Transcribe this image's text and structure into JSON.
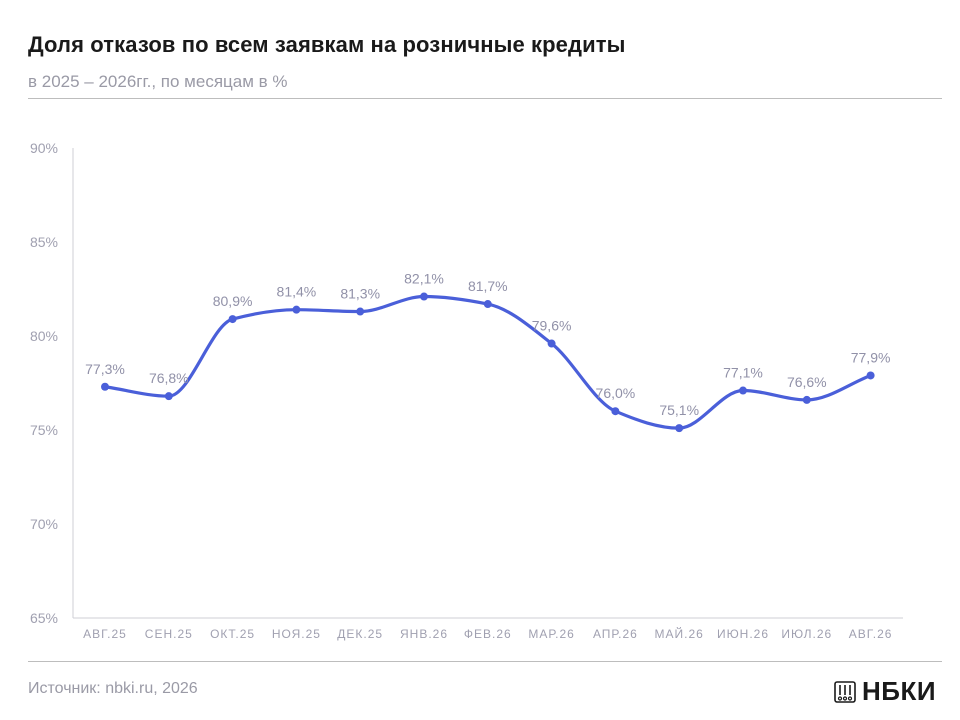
{
  "header": {
    "title": "Доля отказов по всем заявкам на розничные кредиты",
    "subtitle": "в 2025 – 2026гг., по месяцам в %"
  },
  "footer": {
    "source": "Источник: nbki.ru, 2026",
    "logo_text": "НБКИ"
  },
  "colors": {
    "line": "#4a5fd9",
    "axis": "#cfcfd6",
    "labels": "#a0a0b0"
  },
  "chart_data": {
    "type": "line",
    "title": "Доля отказов по всем заявкам на розничные кредиты",
    "subtitle": "в 2025 – 2026гг., по месяцам в %",
    "categories": [
      "АВГ.25",
      "СЕН.25",
      "ОКТ.25",
      "НОЯ.25",
      "ДЕК.25",
      "ЯНВ.26",
      "ФЕВ.26",
      "МАР.26",
      "АПР.26",
      "МАЙ.26",
      "ИЮН.26",
      "ИЮЛ.26",
      "АВГ.26"
    ],
    "series": [
      {
        "values": [
          77.3,
          76.8,
          80.9,
          81.4,
          81.3,
          82.1,
          81.7,
          79.6,
          76.0,
          75.1,
          77.1,
          76.6,
          77.9
        ],
        "labels": [
          "77,3%",
          "76,8%",
          "80,9%",
          "81,4%",
          "81,3%",
          "82,1%",
          "81,7%",
          "79,6%",
          "76,0%",
          "75,1%",
          "77,1%",
          "76,6%",
          "77,9%"
        ]
      }
    ],
    "yticks": [
      65,
      70,
      75,
      80,
      85,
      90
    ],
    "ytick_labels": [
      "65%",
      "70%",
      "75%",
      "80%",
      "85%",
      "90%"
    ],
    "ylim": [
      65,
      90
    ],
    "grid": false,
    "smooth": true,
    "markers": true
  }
}
